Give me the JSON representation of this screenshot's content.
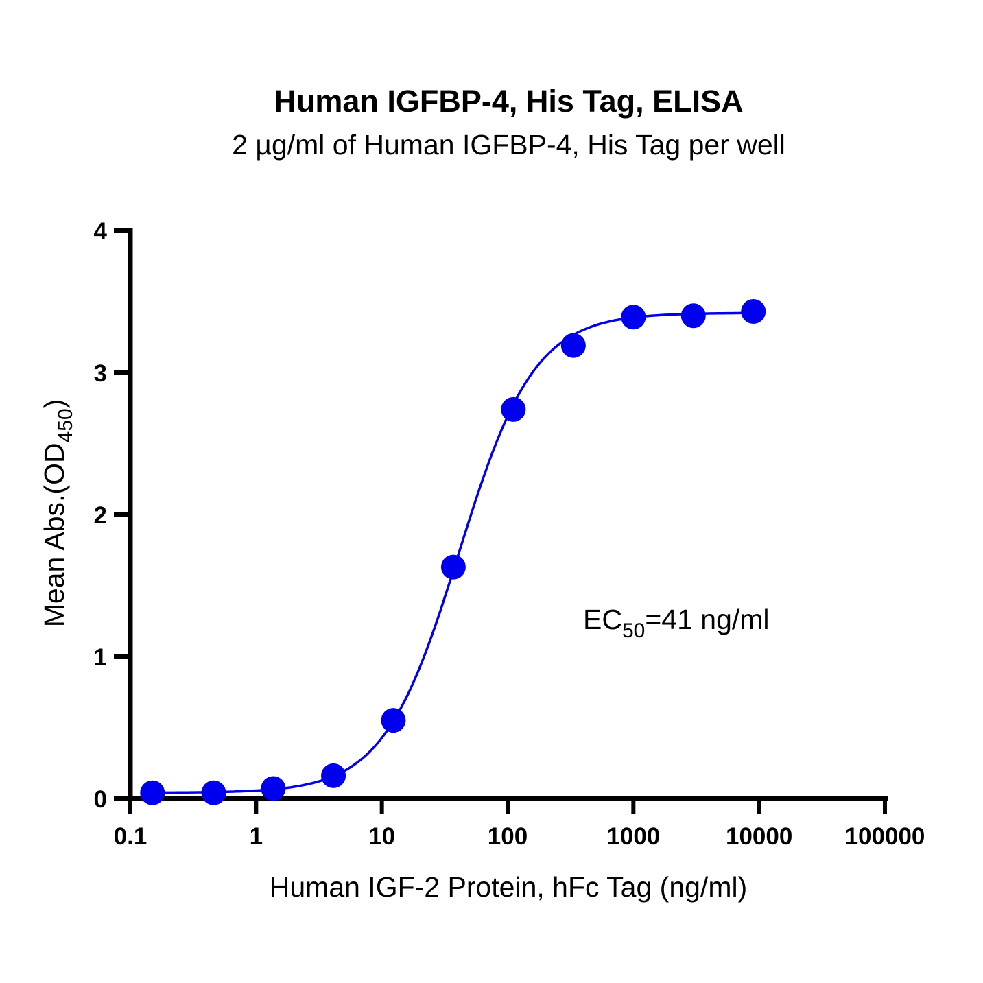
{
  "chart_data": {
    "type": "scatter",
    "title": "Human IGFBP-4, His Tag, ELISA",
    "subtitle": "2 µg/ml of Human IGFBP-4, His Tag per well",
    "xlabel": "Human IGF-2 Protein, hFc Tag (ng/ml)",
    "ylabel": {
      "main": "Mean Abs.(OD",
      "sub": "450",
      "close": ")"
    },
    "xscale": "log",
    "xlim": [
      0.1,
      100000
    ],
    "ylim": [
      0,
      4
    ],
    "x_ticks": [
      0.1,
      1,
      10,
      100,
      1000,
      10000,
      100000
    ],
    "x_tick_labels": [
      "0.1",
      "1",
      "10",
      "100",
      "1000",
      "10000",
      "100000"
    ],
    "y_ticks": [
      0,
      1,
      2,
      3,
      4
    ],
    "y_tick_labels": [
      "0",
      "1",
      "2",
      "3",
      "4"
    ],
    "series": [
      {
        "x": [
          0.15,
          0.46,
          1.37,
          4.12,
          12.35,
          37.04,
          111.1,
          333.3,
          1000,
          3000,
          9000
        ],
        "y": [
          0.04,
          0.04,
          0.07,
          0.16,
          0.55,
          1.63,
          2.74,
          3.19,
          3.39,
          3.4,
          3.43
        ],
        "color": "#0000ee",
        "fit": "4PL"
      }
    ],
    "fit_params": {
      "bottom": 0.04,
      "top": 3.42,
      "ec50": 41,
      "hill": 1.45
    },
    "annotation": {
      "prefix": "EC",
      "sub": "50",
      "suffix": "=41 ng/ml"
    },
    "grid": false
  }
}
